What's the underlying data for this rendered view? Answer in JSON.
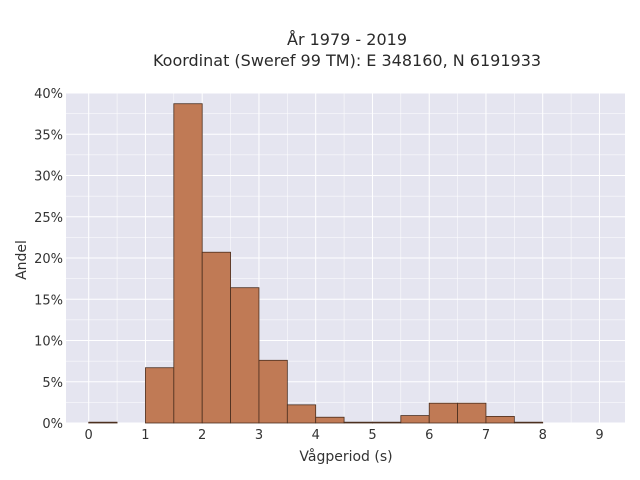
{
  "chart_data": {
    "type": "bar",
    "title_line1": "År 1979 - 2019",
    "title_line2": "Koordinat (Sweref 99 TM): E 348160, N 6191933",
    "xlabel": "Vågperiod (s)",
    "ylabel": "Andel",
    "xlim": [
      -0.4,
      9.45
    ],
    "ylim": [
      0,
      0.4
    ],
    "x_ticks": [
      0,
      1,
      2,
      3,
      4,
      5,
      6,
      7,
      8,
      9
    ],
    "x_tick_labels": [
      "0",
      "1",
      "2",
      "3",
      "4",
      "5",
      "6",
      "7",
      "8",
      "9"
    ],
    "y_ticks": [
      0,
      0.05,
      0.1,
      0.15,
      0.2,
      0.25,
      0.3,
      0.35,
      0.4
    ],
    "y_tick_labels": [
      "0%",
      "5%",
      "10%",
      "15%",
      "20%",
      "25%",
      "30%",
      "35%",
      "40%"
    ],
    "bin_width": 0.5,
    "bins": [
      {
        "start": 0.0,
        "value": 0.001
      },
      {
        "start": 0.5,
        "value": 0.0
      },
      {
        "start": 1.0,
        "value": 0.067
      },
      {
        "start": 1.5,
        "value": 0.387
      },
      {
        "start": 2.0,
        "value": 0.207
      },
      {
        "start": 2.5,
        "value": 0.164
      },
      {
        "start": 3.0,
        "value": 0.076
      },
      {
        "start": 3.5,
        "value": 0.022
      },
      {
        "start": 4.0,
        "value": 0.007
      },
      {
        "start": 4.5,
        "value": 0.001
      },
      {
        "start": 5.0,
        "value": 0.001
      },
      {
        "start": 5.5,
        "value": 0.009
      },
      {
        "start": 6.0,
        "value": 0.024
      },
      {
        "start": 6.5,
        "value": 0.024
      },
      {
        "start": 7.0,
        "value": 0.008
      },
      {
        "start": 7.5,
        "value": 0.001
      },
      {
        "start": 8.0,
        "value": 0.0
      },
      {
        "start": 8.5,
        "value": 0.0
      }
    ],
    "grid": true,
    "colors": {
      "bar": "#c07a55",
      "bar_edge": "#4a2e1e",
      "plot_bg": "#e5e5f0",
      "grid": "#ffffff"
    }
  }
}
